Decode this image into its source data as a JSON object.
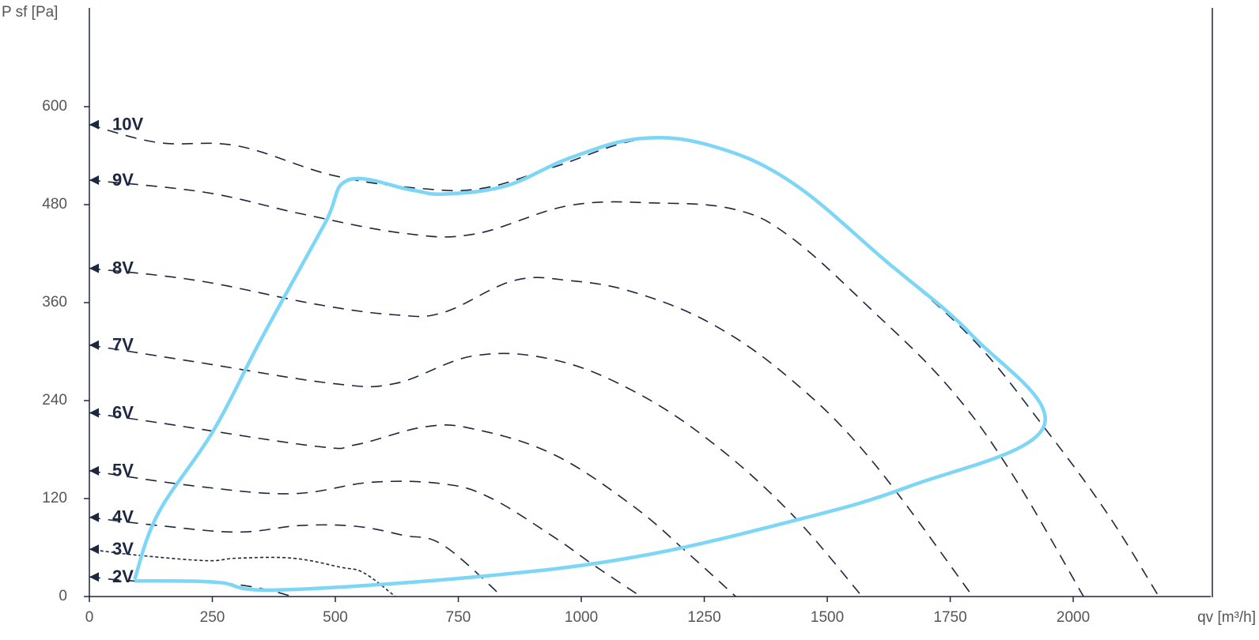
{
  "chart_data": {
    "type": "line",
    "y_label": "P sf [Pa]",
    "x_label": "qv [m³/h]",
    "xlim": [
      0,
      2278
    ],
    "ylim": [
      0,
      720
    ],
    "xticks": [
      0,
      250,
      500,
      750,
      1000,
      1250,
      1500,
      1750,
      2000
    ],
    "yticks": [
      0,
      120,
      240,
      360,
      480,
      600
    ],
    "series": [
      {
        "name": "10V",
        "color": "#1d2740",
        "line_style": "dashed",
        "x": [
          0,
          140,
          301,
          494,
          670,
          799,
          944,
          1121,
          1265,
          1426,
          1619,
          1796,
          1940,
          2069,
          2174
        ],
        "values": [
          578,
          556,
          552,
          516,
          500,
          500,
          526,
          560,
          552,
          508,
          411,
          315,
          208,
          102,
          0
        ]
      },
      {
        "name": "9V",
        "color": "#1d2740",
        "line_style": "dashed",
        "x": [
          0,
          236,
          429,
          638,
          783,
          976,
          1153,
          1313,
          1426,
          1587,
          1748,
          1876,
          2021
        ],
        "values": [
          510,
          495,
          469,
          445,
          444,
          479,
          482,
          474,
          440,
          353,
          256,
          150,
          0
        ]
      },
      {
        "name": "8V",
        "color": "#1d2740",
        "line_style": "dashed",
        "x": [
          0,
          220,
          461,
          622,
          720,
          863,
          976,
          1105,
          1265,
          1426,
          1587,
          1796
        ],
        "values": [
          402,
          387,
          358,
          345,
          348,
          387,
          387,
          373,
          334,
          266,
          169,
          0
        ]
      },
      {
        "name": "7V",
        "color": "#1d2740",
        "line_style": "dashed",
        "x": [
          0,
          220,
          494,
          622,
          783,
          944,
          1105,
          1265,
          1426,
          1571
        ],
        "values": [
          308,
          287,
          261,
          261,
          295,
          290,
          252,
          189,
          102,
          0
        ]
      },
      {
        "name": "6V",
        "color": "#1d2740",
        "line_style": "dashed",
        "x": [
          0,
          140,
          461,
          542,
          683,
          783,
          944,
          1105,
          1217,
          1314
        ],
        "values": [
          225,
          213,
          184,
          186,
          208,
          205,
          174,
          111,
          53,
          0
        ]
      },
      {
        "name": "5V",
        "color": "#1d2740",
        "line_style": "dashed",
        "x": [
          0,
          220,
          413,
          574,
          719,
          815,
          944,
          1024,
          1121
        ],
        "values": [
          154,
          135,
          126,
          140,
          138,
          121,
          73,
          39,
          0
        ]
      },
      {
        "name": "4V",
        "color": "#1d2740",
        "line_style": "dashed",
        "x": [
          0,
          140,
          301,
          429,
          542,
          638,
          719,
          839
        ],
        "values": [
          97,
          87,
          79,
          87,
          86,
          75,
          63,
          0
        ]
      },
      {
        "name": "3V",
        "color": "#1d2740",
        "line_style": "dotted",
        "x": [
          0,
          92,
          236,
          301,
          413,
          510,
          558,
          622
        ],
        "values": [
          58,
          51,
          44,
          47,
          47,
          36,
          29,
          0
        ]
      },
      {
        "name": "2V",
        "color": "#1d2740",
        "line_style": "dashed",
        "x": [
          0,
          92,
          204,
          268,
          349,
          413
        ],
        "values": [
          24,
          19,
          19,
          17,
          10,
          0
        ]
      }
    ],
    "envelope": {
      "color": "#7dd6f5",
      "x": [
        92,
        140,
        252,
        349,
        477,
        526,
        654,
        720,
        847,
        976,
        1121,
        1265,
        1426,
        1619,
        1796,
        1940,
        1667,
        1426,
        1105,
        783,
        381,
        268,
        188,
        92
      ],
      "values": [
        21,
        102,
        203,
        315,
        455,
        510,
        498,
        493,
        503,
        537,
        561,
        552,
        508,
        411,
        319,
        208,
        135,
        92,
        48,
        24,
        8,
        17,
        19,
        19
      ]
    }
  }
}
